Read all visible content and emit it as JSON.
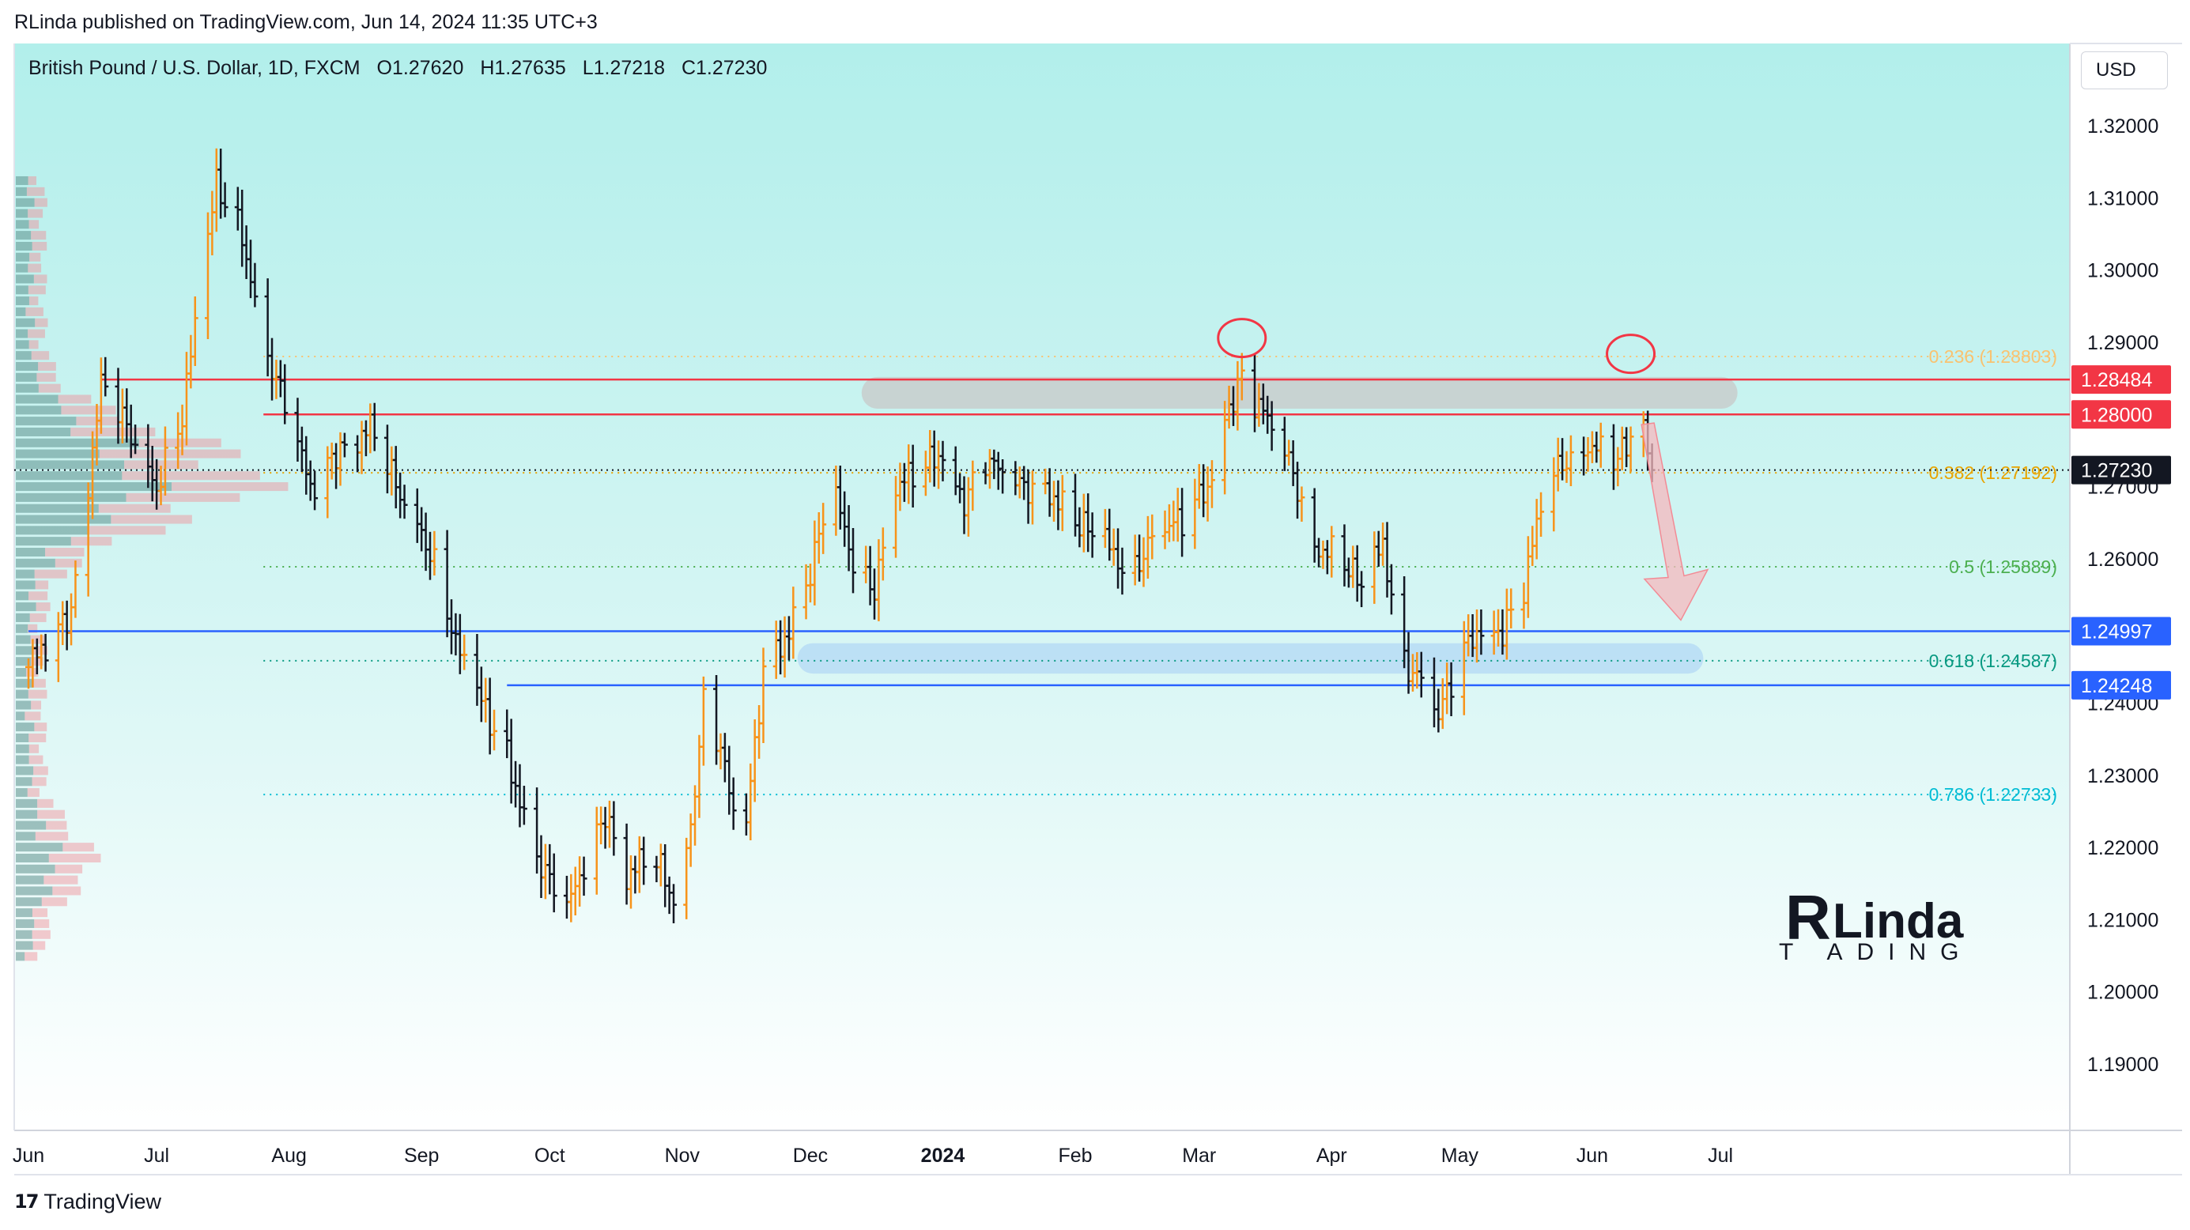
{
  "header": {
    "published": "RLinda published on TradingView.com, Jun 14, 2024 11:35 UTC+3"
  },
  "legend": {
    "symbol": "British Pound / U.S. Dollar, 1D, FXCM",
    "open": "O1.27620",
    "high": "H1.27635",
    "low": "L1.27218",
    "close": "C1.27230"
  },
  "currency_button": "USD",
  "footer": {
    "brand": "TradingView"
  },
  "logo": {
    "line1": "Linda",
    "line2": "T ADING"
  },
  "colors": {
    "up": "#f7931a",
    "down": "#131722",
    "resistance": "#f23645",
    "support": "#2962ff",
    "fib_236": "#f9c270",
    "fib_382": "#e8a400",
    "fib_5": "#4caf50",
    "fib_618": "#089981",
    "fib_786": "#00bcd4",
    "zone_gray": "#c8c8c8",
    "zone_blue": "#b7dcf5",
    "arrow": "#f5b8bd"
  },
  "chart_data": {
    "type": "candlestick",
    "title": "British Pound / U.S. Dollar, 1D, FXCM",
    "ylim": [
      1.184,
      1.33
    ],
    "y_ticks": [
      "1.32000",
      "1.31000",
      "1.30000",
      "1.29000",
      "1.28000",
      "1.27000",
      "1.26000",
      "1.25000",
      "1.24000",
      "1.23000",
      "1.22000",
      "1.21000",
      "1.20000",
      "1.19000"
    ],
    "x_ticks": [
      {
        "label": "Jun",
        "day": 0
      },
      {
        "label": "Jul",
        "day": 30
      },
      {
        "label": "Aug",
        "day": 61
      },
      {
        "label": "Sep",
        "day": 92
      },
      {
        "label": "Oct",
        "day": 122
      },
      {
        "label": "Nov",
        "day": 153
      },
      {
        "label": "Dec",
        "day": 183
      },
      {
        "label": "2024",
        "day": 214
      },
      {
        "label": "Feb",
        "day": 245
      },
      {
        "label": "Mar",
        "day": 274
      },
      {
        "label": "Apr",
        "day": 305
      },
      {
        "label": "May",
        "day": 335
      },
      {
        "label": "Jun",
        "day": 366
      },
      {
        "label": "Jul",
        "day": 396
      }
    ],
    "price_labels": [
      {
        "value": 1.28484,
        "text": "1.28484",
        "kind": "resistance"
      },
      {
        "value": 1.28,
        "text": "1.28000",
        "kind": "resistance"
      },
      {
        "value": 1.2723,
        "text": "1.27230",
        "kind": "last"
      },
      {
        "value": 1.24997,
        "text": "1.24997",
        "kind": "support"
      },
      {
        "value": 1.24248,
        "text": "1.24248",
        "kind": "support"
      }
    ],
    "horizontal_lines": [
      {
        "value": 1.28484,
        "start_day": 17,
        "kind": "resistance"
      },
      {
        "value": 1.28,
        "start_day": 55,
        "kind": "resistance"
      },
      {
        "value": 1.24997,
        "start_day": 0,
        "kind": "support"
      },
      {
        "value": 1.24248,
        "start_day": 112,
        "kind": "support"
      }
    ],
    "fib_levels": [
      {
        "ratio": "0.236",
        "value": 1.28803,
        "label": "0.236 (1.28803)",
        "kind": "fib_236"
      },
      {
        "ratio": "0.382",
        "value": 1.27192,
        "label": "0.382 (1.27192)",
        "kind": "fib_382"
      },
      {
        "ratio": "0.5",
        "value": 1.25889,
        "label": "0.5 (1.25889)",
        "kind": "fib_5"
      },
      {
        "ratio": "0.618",
        "value": 1.24587,
        "label": "0.618 (1.24587)",
        "kind": "fib_618"
      },
      {
        "ratio": "0.786",
        "value": 1.22733,
        "label": "0.786 (1.22733)",
        "kind": "fib_786"
      }
    ],
    "zones": [
      {
        "kind": "zone_gray",
        "start_day": 195,
        "end_day": 400,
        "top": 1.2852,
        "bottom": 1.2808
      },
      {
        "kind": "zone_blue",
        "start_day": 180,
        "end_day": 392,
        "top": 1.2483,
        "bottom": 1.2441
      }
    ],
    "highlight_circles": [
      {
        "day": 284,
        "value": 1.2895
      },
      {
        "day": 375,
        "value": 1.2873
      }
    ],
    "projection_arrow": {
      "start_day": 379,
      "start_value": 1.2786,
      "end_day": 386,
      "end_value": 1.2515
    },
    "price_path": [
      [
        0,
        1.245
      ],
      [
        10,
        1.253
      ],
      [
        17,
        1.284
      ],
      [
        25,
        1.276
      ],
      [
        30,
        1.27
      ],
      [
        36,
        1.28
      ],
      [
        44,
        1.312
      ],
      [
        50,
        1.305
      ],
      [
        55,
        1.29
      ],
      [
        60,
        1.281
      ],
      [
        66,
        1.27
      ],
      [
        72,
        1.275
      ],
      [
        80,
        1.278
      ],
      [
        86,
        1.27
      ],
      [
        92,
        1.264
      ],
      [
        97,
        1.256
      ],
      [
        100,
        1.248
      ],
      [
        106,
        1.24
      ],
      [
        112,
        1.233
      ],
      [
        118,
        1.22
      ],
      [
        122,
        1.215
      ],
      [
        126,
        1.211
      ],
      [
        130,
        1.218
      ],
      [
        135,
        1.225
      ],
      [
        140,
        1.216
      ],
      [
        146,
        1.219
      ],
      [
        151,
        1.213
      ],
      [
        155,
        1.223
      ],
      [
        158,
        1.24
      ],
      [
        162,
        1.234
      ],
      [
        165,
        1.224
      ],
      [
        168,
        1.223
      ],
      [
        172,
        1.245
      ],
      [
        178,
        1.25
      ],
      [
        183,
        1.258
      ],
      [
        188,
        1.27
      ],
      [
        193,
        1.26
      ],
      [
        198,
        1.256
      ],
      [
        203,
        1.27
      ],
      [
        209,
        1.272
      ],
      [
        214,
        1.275
      ],
      [
        219,
        1.268
      ],
      [
        224,
        1.274
      ],
      [
        230,
        1.27
      ],
      [
        238,
        1.27
      ],
      [
        245,
        1.265
      ],
      [
        252,
        1.262
      ],
      [
        258,
        1.258
      ],
      [
        264,
        1.264
      ],
      [
        270,
        1.265
      ],
      [
        276,
        1.27
      ],
      [
        280,
        1.28
      ],
      [
        284,
        1.285
      ],
      [
        290,
        1.279
      ],
      [
        296,
        1.272
      ],
      [
        301,
        1.262
      ],
      [
        307,
        1.26
      ],
      [
        312,
        1.256
      ],
      [
        317,
        1.262
      ],
      [
        322,
        1.246
      ],
      [
        326,
        1.243
      ],
      [
        330,
        1.238
      ],
      [
        335,
        1.246
      ],
      [
        340,
        1.251
      ],
      [
        345,
        1.25
      ],
      [
        350,
        1.256
      ],
      [
        355,
        1.27
      ],
      [
        360,
        1.274
      ],
      [
        366,
        1.276
      ],
      [
        370,
        1.273
      ],
      [
        374,
        1.275
      ],
      [
        377,
        1.28
      ],
      [
        380,
        1.2723
      ]
    ],
    "last_close": 1.2723,
    "volume_profile": {
      "low": 1.204,
      "high": 1.313,
      "peak_value": 1.271
    }
  }
}
